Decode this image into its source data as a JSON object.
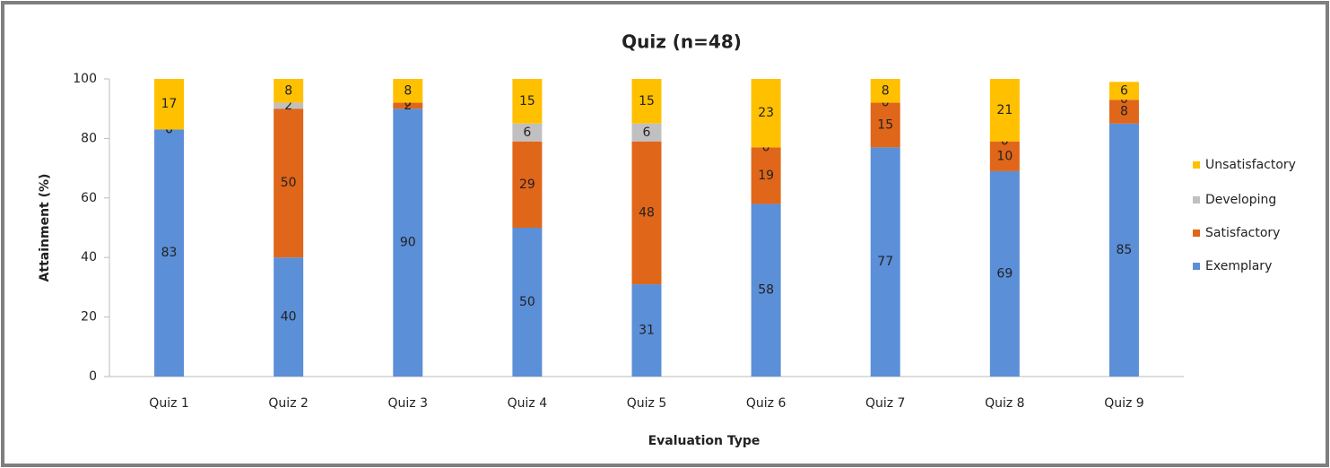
{
  "chart_data": {
    "type": "stacked_bar",
    "title": "Quiz (n=48)",
    "x_label": "Evaluation Type",
    "y_label": "Attainment (%)",
    "categories": [
      "Quiz 1",
      "Quiz 2",
      "Quiz 3",
      "Quiz 4",
      "Quiz 5",
      "Quiz 6",
      "Quiz 7",
      "Quiz 8",
      "Quiz 9"
    ],
    "series": [
      {
        "name": "Exemplary",
        "color": "#5b8fd8",
        "values": [
          83,
          40,
          90,
          50,
          31,
          58,
          77,
          69,
          85
        ]
      },
      {
        "name": "Satisfactory",
        "color": "#e0661a",
        "values": [
          0,
          50,
          2,
          29,
          48,
          19,
          15,
          10,
          8
        ]
      },
      {
        "name": "Developing",
        "color": "#c0c0c0",
        "values": [
          0,
          2,
          0,
          6,
          6,
          0,
          0,
          0,
          0
        ]
      },
      {
        "name": "Unsatisfactory",
        "color": "#ffc000",
        "values": [
          17,
          8,
          8,
          15,
          15,
          23,
          8,
          21,
          6
        ]
      }
    ],
    "ylim": [
      0,
      100
    ],
    "yticks": [
      0,
      20,
      40,
      60,
      80,
      100
    ],
    "legend": "right"
  }
}
